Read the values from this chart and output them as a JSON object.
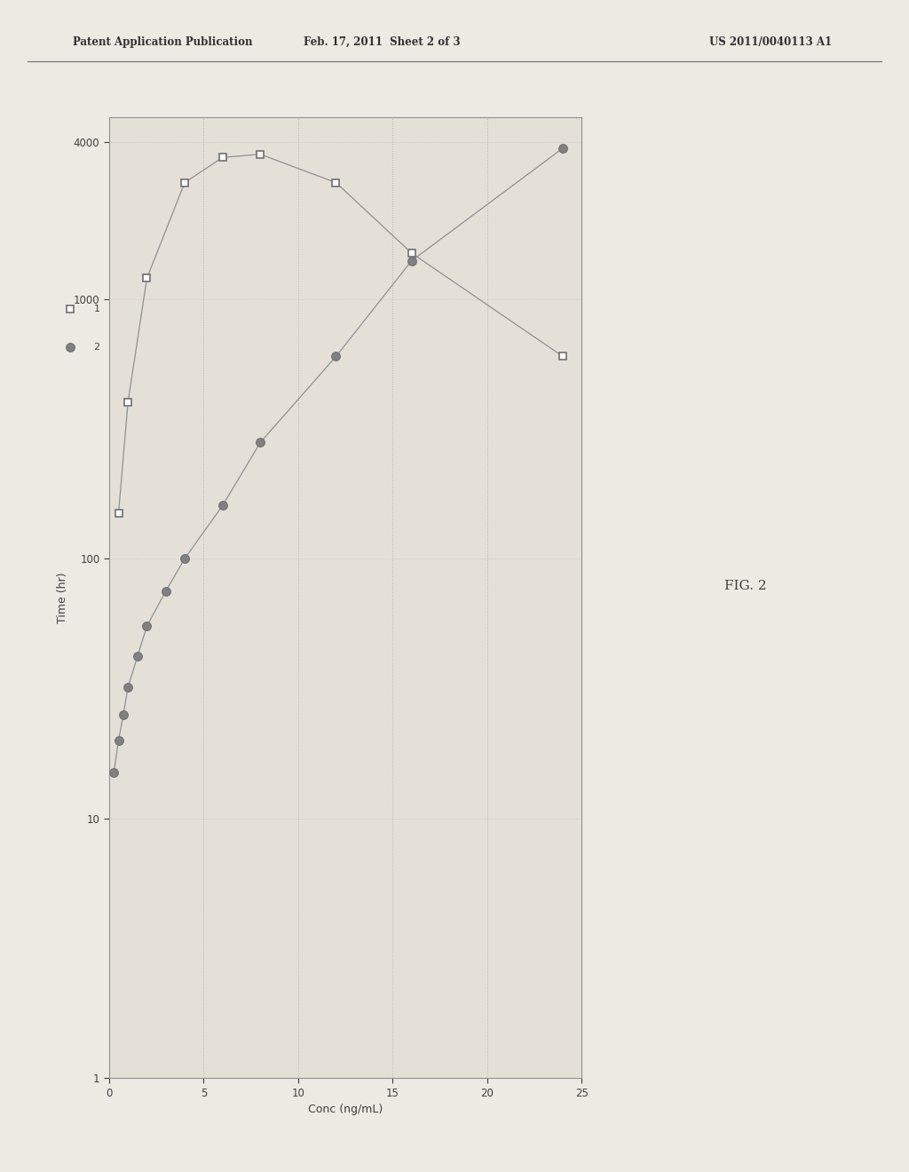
{
  "title": "FIG. 2",
  "xlabel_rotated": "Time (hr)",
  "ylabel_rotated": "Conc (ng/mL)",
  "header_text_left": "Patent Application Publication",
  "header_text_mid": "Feb. 17, 2011  Sheet 2 of 3",
  "header_text_right": "US 2011/0040113 A1",
  "series1_label": "1",
  "series2_label": "2",
  "series1_time": [
    0.5,
    1.0,
    2.0,
    4.0,
    6.0,
    8.0,
    12.0,
    16.0,
    24.0
  ],
  "series1_conc": [
    150,
    400,
    1200,
    2800,
    3500,
    3600,
    2800,
    1500,
    600
  ],
  "series2_time": [
    0.25,
    0.5,
    0.75,
    1.0,
    1.5,
    2.0,
    3.0,
    4.0,
    6.0,
    8.0,
    12.0,
    16.0,
    24.0
  ],
  "series2_conc": [
    15,
    20,
    25,
    32,
    42,
    55,
    75,
    100,
    160,
    280,
    600,
    1400,
    3800
  ],
  "time_max": 25,
  "time_ticks": [
    0,
    5,
    10,
    15,
    20,
    25
  ],
  "conc_ticks": [
    4000,
    1000,
    100,
    10,
    1
  ],
  "line_color": "#909090",
  "marker_edge_color": "#707070",
  "fill_color_circle": "#808080",
  "bg_color": "#ede9e3",
  "plot_bg_color": "#e4e0d8",
  "page_bg_color": "#ede9e3"
}
